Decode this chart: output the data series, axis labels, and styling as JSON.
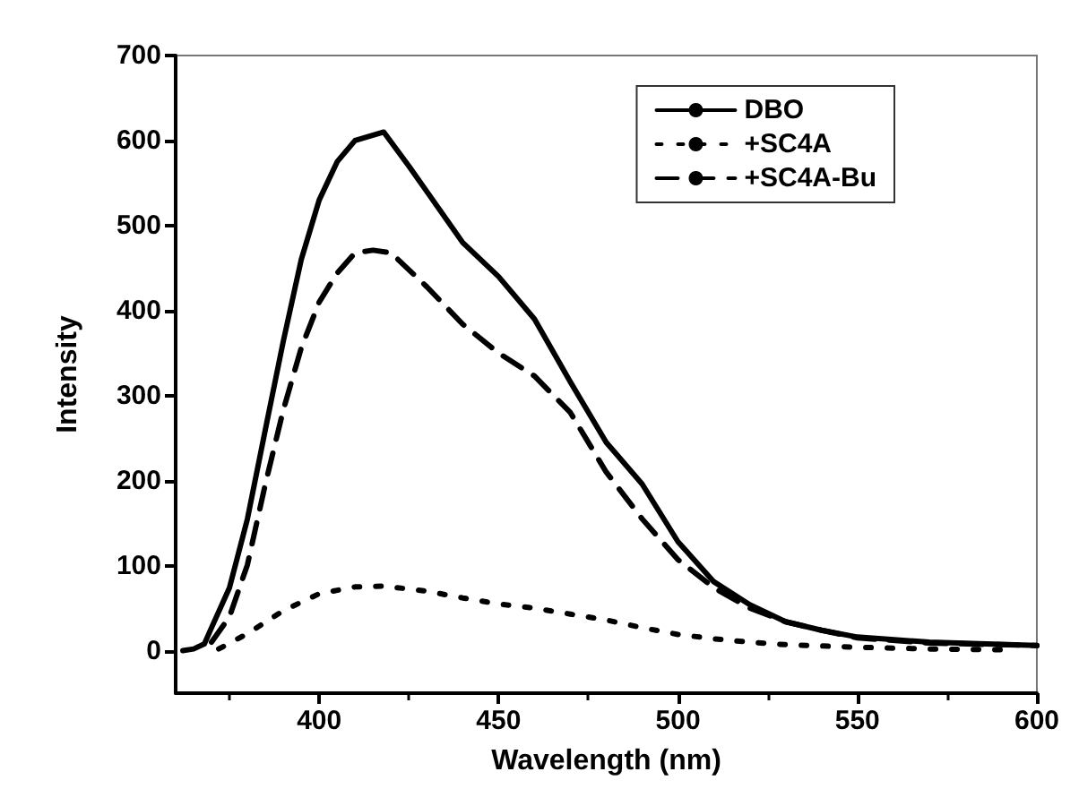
{
  "chart_data": {
    "type": "line",
    "xlabel": "Wavelength (nm)",
    "ylabel": "Intensity",
    "xlim": [
      360,
      600
    ],
    "xticks": [
      400,
      450,
      500,
      550,
      600
    ],
    "ylim": [
      -50,
      700
    ],
    "yticks": [
      0,
      100,
      200,
      300,
      400,
      500,
      600,
      700
    ],
    "grid": false,
    "legend": "top right",
    "marker": "none",
    "series": [
      {
        "name": "DBO",
        "color": "#000000",
        "line_style": "solid",
        "x": [
          362,
          365,
          368,
          370,
          375,
          380,
          385,
          390,
          395,
          400,
          405,
          410,
          418,
          425,
          430,
          440,
          450,
          460,
          470,
          480,
          490,
          500,
          510,
          520,
          530,
          540,
          550,
          570,
          600
        ],
        "values": [
          0,
          2,
          8,
          27,
          74,
          155,
          260,
          364,
          460,
          530,
          575,
          600,
          610,
          570,
          540,
          480,
          440,
          390,
          316,
          245,
          196,
          128,
          81,
          54,
          34,
          24,
          16,
          10,
          6
        ]
      },
      {
        "name": "+SC4A",
        "color": "#000000",
        "line_style": "dotted",
        "x": [
          372,
          380,
          390,
          400,
          410,
          418,
          430,
          440,
          450,
          460,
          470,
          480,
          490,
          500,
          510,
          520,
          530,
          550,
          570,
          590
        ],
        "values": [
          2,
          20,
          47,
          67,
          75,
          76,
          70,
          62,
          55,
          50,
          43,
          36,
          27,
          19,
          14,
          10,
          7,
          4,
          2,
          1
        ]
      },
      {
        "name": "+SC4A-Bu",
        "color": "#000000",
        "line_style": "dashed",
        "x": [
          370,
          375,
          380,
          385,
          390,
          395,
          400,
          405,
          410,
          415,
          420,
          430,
          440,
          450,
          460,
          470,
          480,
          490,
          500,
          510,
          520,
          530,
          540,
          550,
          570,
          600
        ],
        "values": [
          10,
          40,
          101,
          196,
          283,
          356,
          410,
          444,
          468,
          471,
          468,
          428,
          384,
          350,
          323,
          280,
          210,
          155,
          107,
          74,
          50,
          34,
          24,
          15,
          9,
          6
        ]
      }
    ]
  }
}
